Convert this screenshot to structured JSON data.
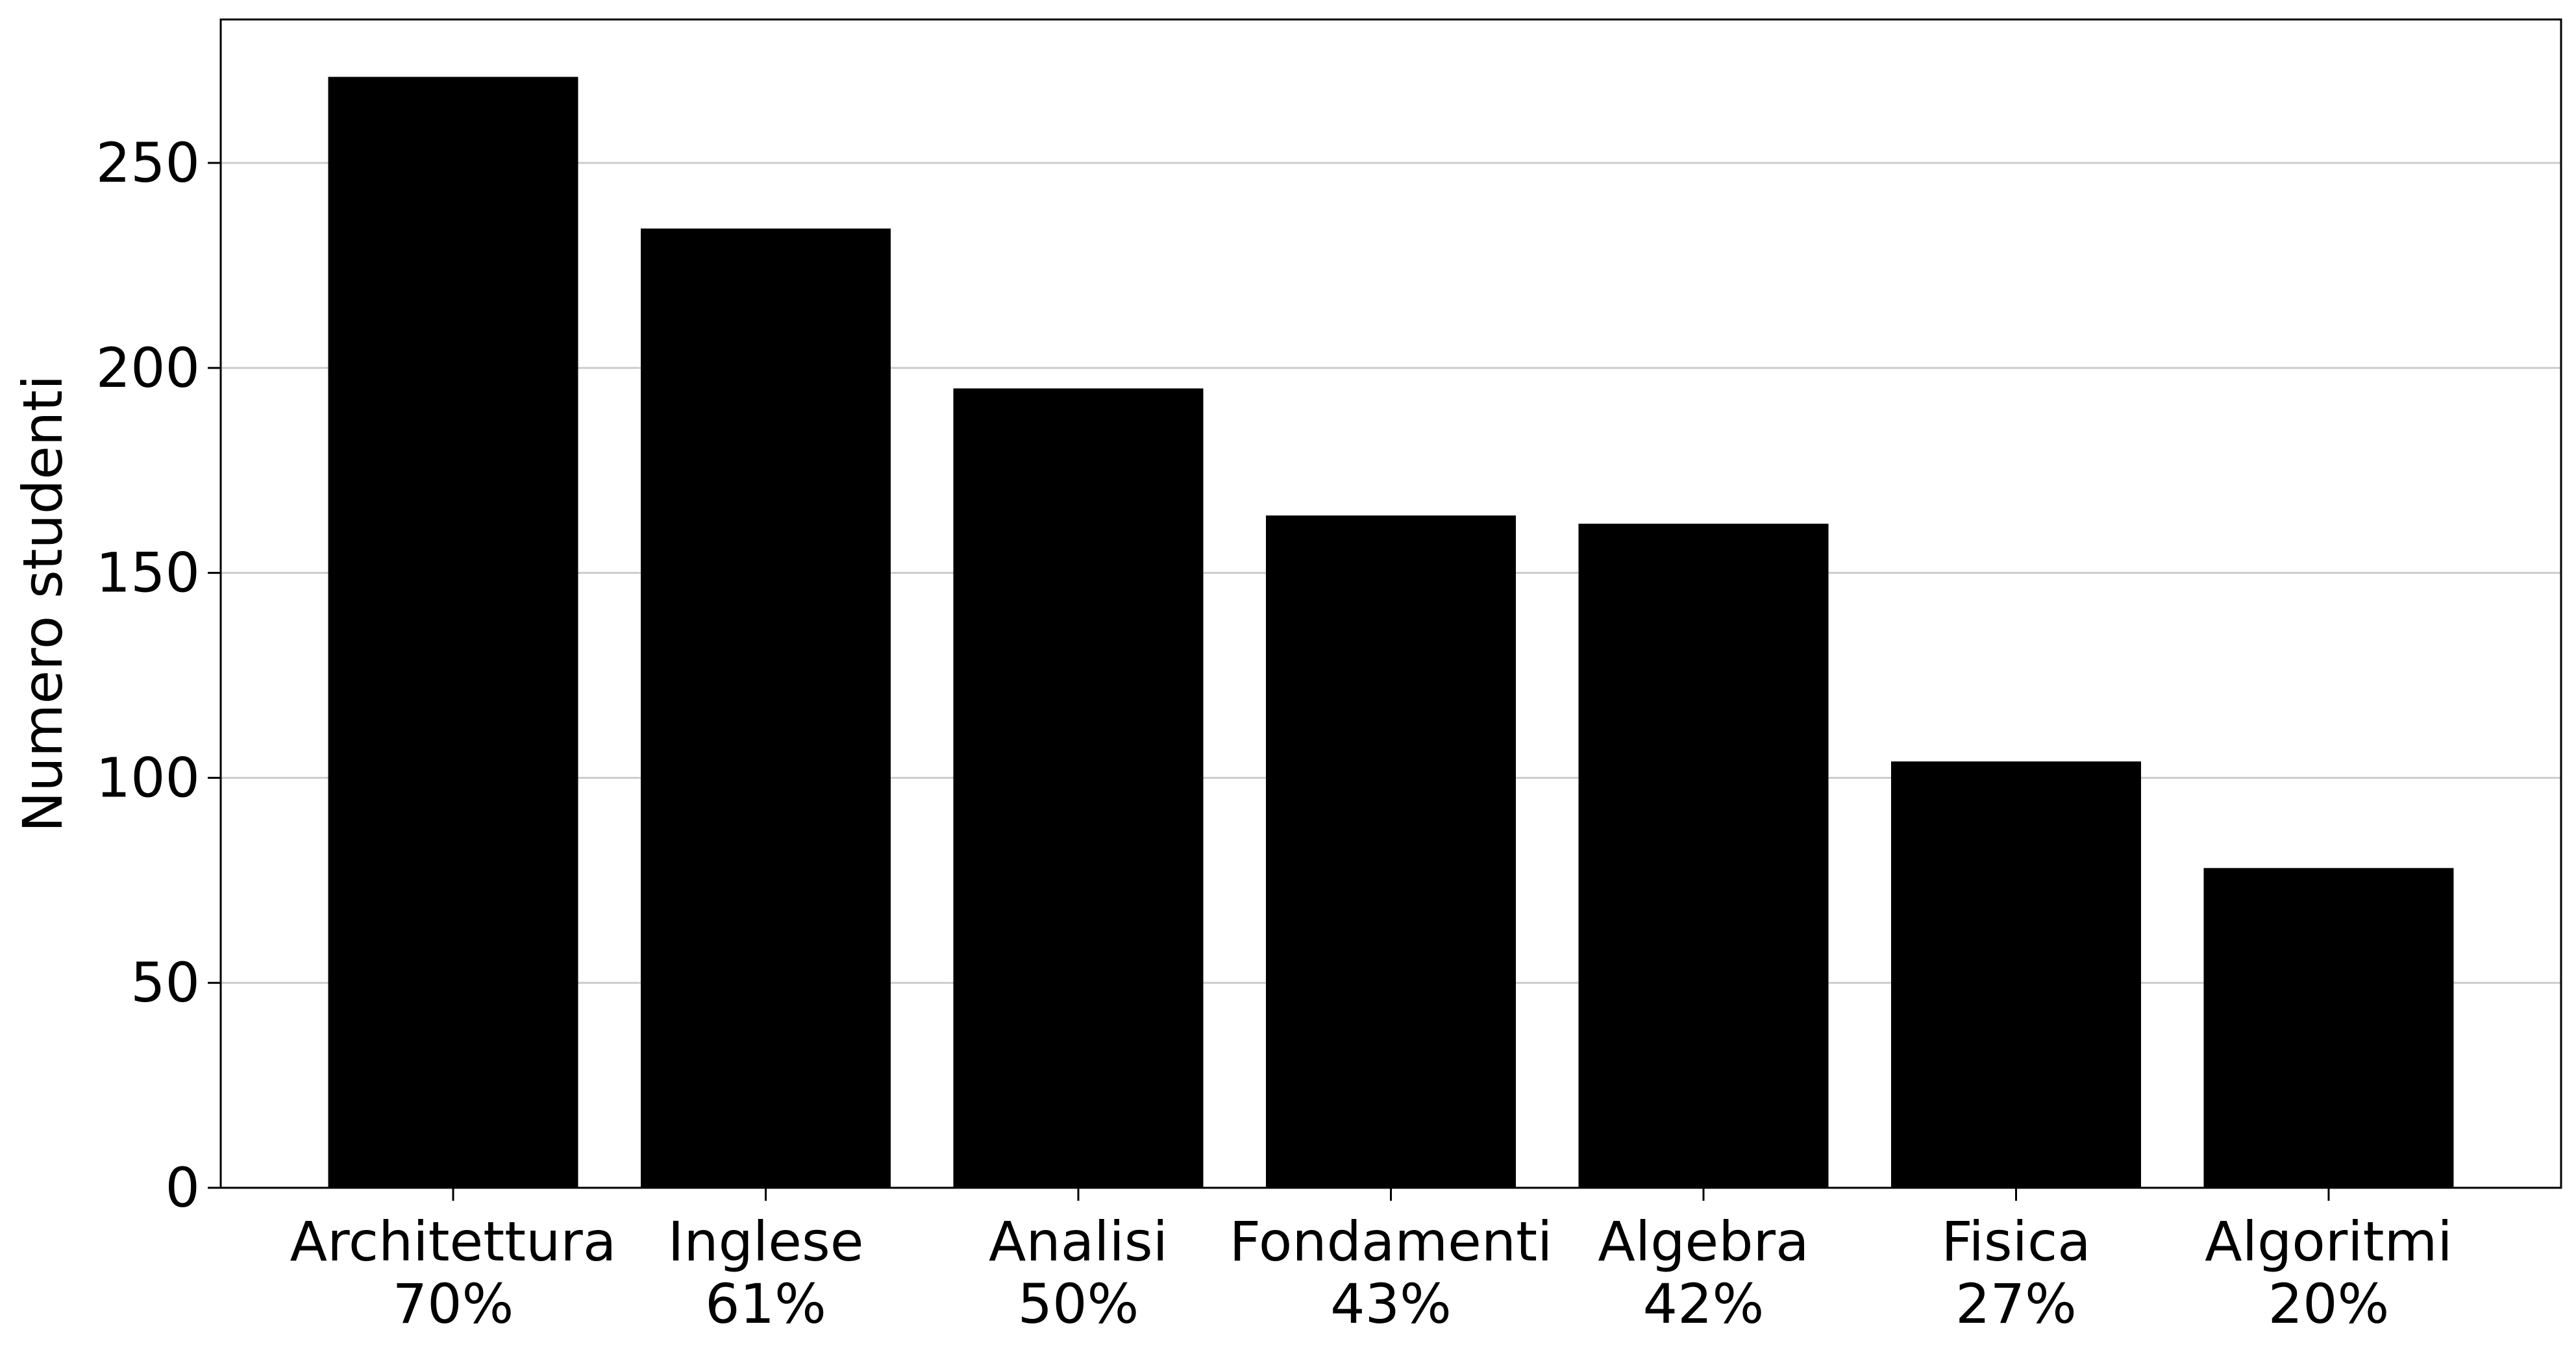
{
  "chart_data": {
    "type": "bar",
    "categories": [
      {
        "name": "Architettura",
        "percent": "70%"
      },
      {
        "name": "Inglese",
        "percent": "61%"
      },
      {
        "name": "Analisi",
        "percent": "50%"
      },
      {
        "name": "Fondamenti",
        "percent": "43%"
      },
      {
        "name": "Algebra",
        "percent": "42%"
      },
      {
        "name": "Fisica",
        "percent": "27%"
      },
      {
        "name": "Algoritmi",
        "percent": "20%"
      }
    ],
    "values": [
      271,
      234,
      195,
      164,
      162,
      104,
      78
    ],
    "ylabel": "Numero studenti",
    "xlabel": "",
    "title": "",
    "ylim": [
      0,
      285
    ],
    "yticks": [
      0,
      50,
      100,
      150,
      200,
      250
    ],
    "grid": "horizontal",
    "bar_color": "#000000",
    "grid_color": "#cccccc"
  }
}
